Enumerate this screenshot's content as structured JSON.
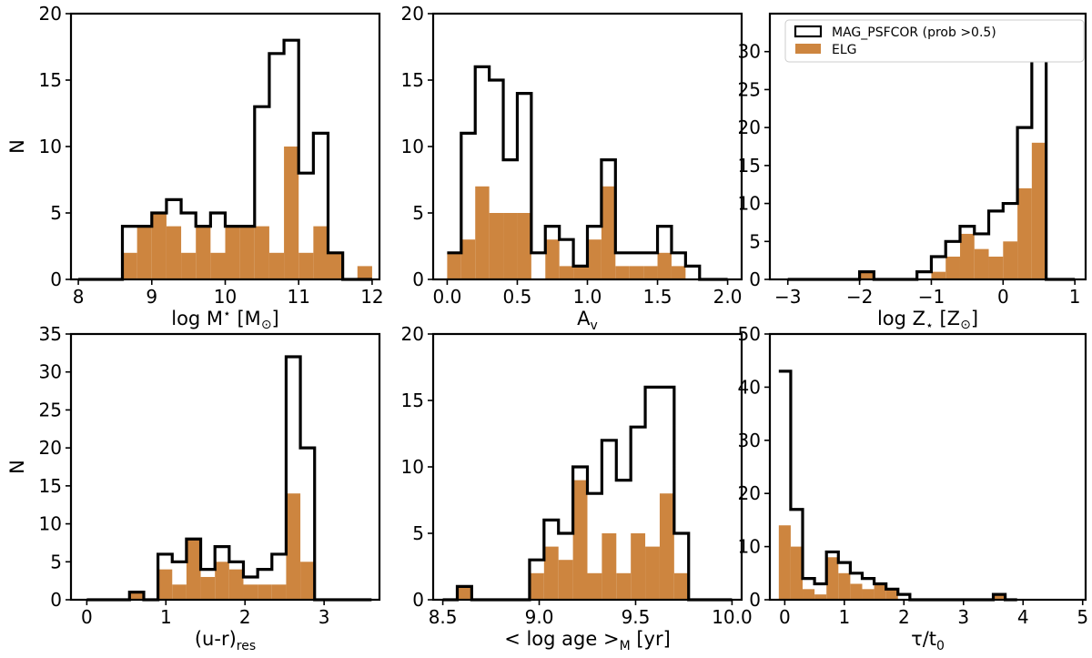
{
  "colors": {
    "elg_fill": "#CD853F",
    "mag_outline": "#000000",
    "background": "#ffffff"
  },
  "legend": {
    "location": "top-right of top-right panel",
    "entries": [
      {
        "label": "MAG_PSFCOR (prob >0.5)",
        "style": "black step outline"
      },
      {
        "label": "ELG",
        "style": "orange filled bars"
      }
    ]
  },
  "chart_data": [
    {
      "id": "mass",
      "type": "histogram",
      "ylabel": "N",
      "xlabel": {
        "main": "log M",
        "sup": "⋆",
        "unit": " [M",
        "unit_sub": "⊙",
        "unit_end": "]"
      },
      "xlim": [
        7.9,
        12.1
      ],
      "ylim": [
        0,
        20
      ],
      "xticks": [
        8,
        9,
        10,
        11,
        12
      ],
      "xtick_labels": [
        "8",
        "9",
        "10",
        "11",
        "12"
      ],
      "yticks": [
        0,
        5,
        10,
        15,
        20
      ],
      "ytick_labels": [
        "0",
        "5",
        "10",
        "15",
        "20"
      ],
      "bin_start": 8.0,
      "bin_width": 0.2,
      "mag": [
        0,
        0,
        0,
        4,
        4,
        5,
        6,
        5,
        4,
        5,
        4,
        4,
        13,
        17,
        18,
        8,
        11,
        2,
        0,
        0
      ],
      "elg": [
        0,
        0,
        0,
        2,
        4,
        5,
        4,
        2,
        4,
        2,
        4,
        4,
        4,
        2,
        10,
        2,
        4,
        2,
        0,
        1
      ]
    },
    {
      "id": "av",
      "type": "histogram",
      "ylabel": "",
      "xlabel": {
        "main": "A",
        "sub": "v"
      },
      "xlim": [
        -0.1,
        2.1
      ],
      "ylim": [
        0,
        20
      ],
      "xticks": [
        0,
        0.5,
        1.0,
        1.5,
        2.0
      ],
      "xtick_labels": [
        "0.0",
        "0.5",
        "1.0",
        "1.5",
        "2.0"
      ],
      "yticks": [
        0,
        5,
        10,
        15,
        20
      ],
      "ytick_labels": [
        "0",
        "5",
        "10",
        "15",
        "20"
      ],
      "bin_start": 0.0,
      "bin_width": 0.1,
      "mag": [
        2,
        11,
        16,
        15,
        9,
        14,
        2,
        4,
        3,
        1,
        4,
        9,
        2,
        2,
        2,
        4,
        2,
        1,
        0,
        0
      ],
      "elg": [
        2,
        3,
        7,
        5,
        5,
        5,
        0,
        3,
        1,
        1,
        3,
        7,
        1,
        1,
        1,
        2,
        1,
        0,
        0,
        0
      ]
    },
    {
      "id": "metallicity",
      "type": "histogram",
      "ylabel": "",
      "xlabel": {
        "main": "log Z",
        "sub": "⋆",
        "unit": "  [Z",
        "unit_sub": "⊙",
        "unit_end": "]"
      },
      "xlim": [
        -3.25,
        1.15
      ],
      "ylim": [
        0,
        35
      ],
      "xticks": [
        -3,
        -2,
        -1,
        0,
        1
      ],
      "xtick_labels": [
        "−3",
        "−2",
        "−1",
        "0",
        "1"
      ],
      "yticks": [
        0,
        5,
        10,
        15,
        20,
        25,
        30
      ],
      "ytick_labels": [
        "0",
        "5",
        "10",
        "15",
        "20",
        "25",
        "30"
      ],
      "bin_start": -3.0,
      "bin_width": 0.2,
      "mag": [
        0,
        0,
        0,
        0,
        0,
        1,
        0,
        0,
        0,
        1,
        3,
        5,
        7,
        6,
        9,
        10,
        20,
        34,
        0,
        0
      ],
      "elg": [
        0,
        0,
        0,
        0,
        0,
        1,
        0,
        0,
        0,
        0,
        1,
        3,
        6,
        4,
        3,
        5,
        12,
        18,
        0,
        0
      ]
    },
    {
      "id": "color",
      "type": "histogram",
      "ylabel": "N",
      "xlabel": {
        "main": "(u-r)",
        "sub": "res"
      },
      "xlim": [
        -0.2,
        3.7
      ],
      "ylim": [
        0,
        35
      ],
      "xticks": [
        0,
        1,
        2,
        3
      ],
      "xtick_labels": [
        "0",
        "1",
        "2",
        "3"
      ],
      "yticks": [
        0,
        5,
        10,
        15,
        20,
        25,
        30,
        35
      ],
      "ytick_labels": [
        "0",
        "5",
        "10",
        "15",
        "20",
        "25",
        "30",
        "35"
      ],
      "bin_start": 0.0,
      "bin_width": 0.18,
      "mag": [
        0,
        0,
        0,
        1,
        0,
        6,
        5,
        8,
        4,
        7,
        5,
        3,
        4,
        6,
        32,
        20,
        0,
        0,
        0,
        0
      ],
      "elg": [
        0,
        0,
        0,
        1,
        0,
        4,
        2,
        8,
        3,
        5,
        4,
        2,
        2,
        2,
        14,
        5,
        0,
        0,
        0,
        0
      ]
    },
    {
      "id": "age",
      "type": "histogram",
      "ylabel": "",
      "xlabel": {
        "main": "< log age >",
        "sub": "M",
        "unit": " [yr]"
      },
      "xlim": [
        8.45,
        10.05
      ],
      "ylim": [
        0,
        20
      ],
      "xticks": [
        8.5,
        9.0,
        9.5,
        10.0
      ],
      "xtick_labels": [
        "8.5",
        "9.0",
        "9.5",
        "10.0"
      ],
      "yticks": [
        0,
        5,
        10,
        15,
        20
      ],
      "ytick_labels": [
        "0",
        "5",
        "10",
        "15",
        "20"
      ],
      "bin_start": 8.5,
      "bin_width": 0.075,
      "mag": [
        0,
        1,
        0,
        0,
        0,
        0,
        3,
        6,
        5,
        10,
        8,
        12,
        9,
        13,
        16,
        16,
        5,
        0,
        0,
        0
      ],
      "elg": [
        0,
        1,
        0,
        0,
        0,
        0,
        2,
        4,
        3,
        9,
        2,
        5,
        2,
        5,
        4,
        8,
        2,
        0,
        0,
        0
      ]
    },
    {
      "id": "tau",
      "type": "histogram",
      "ylabel": "",
      "xlabel": {
        "main": "τ/t",
        "sub": "0"
      },
      "xlim": [
        -0.25,
        5.05
      ],
      "ylim": [
        0,
        50
      ],
      "xticks": [
        0,
        1,
        2,
        3,
        4,
        5
      ],
      "xtick_labels": [
        "0",
        "1",
        "2",
        "3",
        "4",
        "5"
      ],
      "yticks": [
        0,
        10,
        20,
        30,
        40,
        50
      ],
      "ytick_labels": [
        "0",
        "10",
        "20",
        "30",
        "40",
        "50"
      ],
      "bin_start": -0.1,
      "bin_width": 0.2,
      "mag": [
        43,
        17,
        4,
        3,
        9,
        7,
        5,
        4,
        3,
        2,
        1,
        0,
        0,
        0,
        0,
        0,
        0,
        0,
        1,
        0
      ],
      "elg": [
        14,
        10,
        2,
        1,
        8,
        5,
        3,
        2,
        3,
        2,
        0,
        0,
        0,
        0,
        0,
        0,
        0,
        0,
        1,
        0
      ]
    }
  ]
}
